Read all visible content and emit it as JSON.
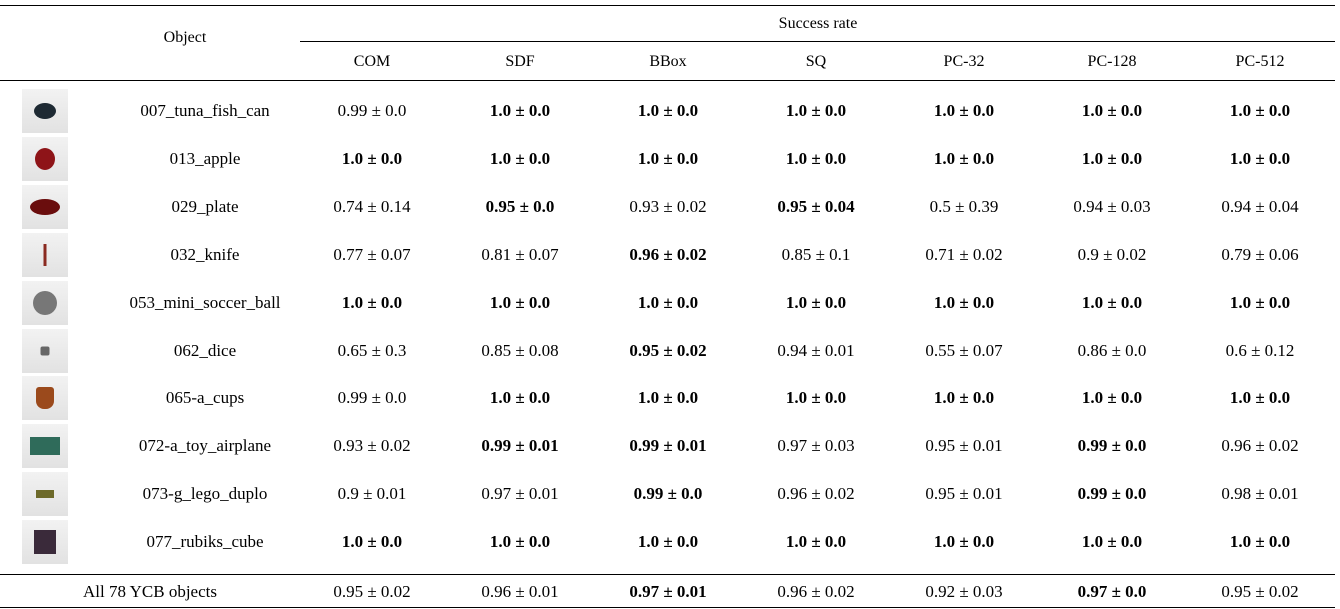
{
  "header": {
    "object": "Object",
    "group": "Success rate",
    "columns": [
      "COM",
      "SDF",
      "BBox",
      "SQ",
      "PC-32",
      "PC-128",
      "PC-512"
    ]
  },
  "rows": [
    {
      "object": "007_tuna_fish_can",
      "cells": [
        {
          "text": "0.99 ± 0.0",
          "bold": false
        },
        {
          "text": "1.0 ± 0.0",
          "bold": true
        },
        {
          "text": "1.0 ± 0.0",
          "bold": true
        },
        {
          "text": "1.0 ± 0.0",
          "bold": true
        },
        {
          "text": "1.0 ± 0.0",
          "bold": true
        },
        {
          "text": "1.0 ± 0.0",
          "bold": true
        },
        {
          "text": "1.0 ± 0.0",
          "bold": true
        }
      ]
    },
    {
      "object": "013_apple",
      "cells": [
        {
          "text": "1.0 ± 0.0",
          "bold": true
        },
        {
          "text": "1.0 ± 0.0",
          "bold": true
        },
        {
          "text": "1.0 ± 0.0",
          "bold": true
        },
        {
          "text": "1.0 ± 0.0",
          "bold": true
        },
        {
          "text": "1.0 ± 0.0",
          "bold": true
        },
        {
          "text": "1.0 ± 0.0",
          "bold": true
        },
        {
          "text": "1.0 ± 0.0",
          "bold": true
        }
      ]
    },
    {
      "object": "029_plate",
      "cells": [
        {
          "text": "0.74 ± 0.14",
          "bold": false
        },
        {
          "text": "0.95 ± 0.0",
          "bold": true
        },
        {
          "text": "0.93 ± 0.02",
          "bold": false
        },
        {
          "text": "0.95 ± 0.04",
          "bold": true
        },
        {
          "text": "0.5 ± 0.39",
          "bold": false
        },
        {
          "text": "0.94 ± 0.03",
          "bold": false
        },
        {
          "text": "0.94 ± 0.04",
          "bold": false
        }
      ]
    },
    {
      "object": "032_knife",
      "cells": [
        {
          "text": "0.77 ± 0.07",
          "bold": false
        },
        {
          "text": "0.81 ± 0.07",
          "bold": false
        },
        {
          "text": "0.96 ± 0.02",
          "bold": true
        },
        {
          "text": "0.85 ± 0.1",
          "bold": false
        },
        {
          "text": "0.71 ± 0.02",
          "bold": false
        },
        {
          "text": "0.9 ± 0.02",
          "bold": false
        },
        {
          "text": "0.79 ± 0.06",
          "bold": false
        }
      ]
    },
    {
      "object": "053_mini_soccer_ball",
      "cells": [
        {
          "text": "1.0 ± 0.0",
          "bold": true
        },
        {
          "text": "1.0 ± 0.0",
          "bold": true
        },
        {
          "text": "1.0 ± 0.0",
          "bold": true
        },
        {
          "text": "1.0 ± 0.0",
          "bold": true
        },
        {
          "text": "1.0 ± 0.0",
          "bold": true
        },
        {
          "text": "1.0 ± 0.0",
          "bold": true
        },
        {
          "text": "1.0 ± 0.0",
          "bold": true
        }
      ]
    },
    {
      "object": "062_dice",
      "cells": [
        {
          "text": "0.65 ± 0.3",
          "bold": false
        },
        {
          "text": "0.85 ± 0.08",
          "bold": false
        },
        {
          "text": "0.95 ± 0.02",
          "bold": true
        },
        {
          "text": "0.94 ± 0.01",
          "bold": false
        },
        {
          "text": "0.55 ± 0.07",
          "bold": false
        },
        {
          "text": "0.86 ± 0.0",
          "bold": false
        },
        {
          "text": "0.6 ± 0.12",
          "bold": false
        }
      ]
    },
    {
      "object": "065-a_cups",
      "cells": [
        {
          "text": "0.99 ± 0.0",
          "bold": false
        },
        {
          "text": "1.0 ± 0.0",
          "bold": true
        },
        {
          "text": "1.0 ± 0.0",
          "bold": true
        },
        {
          "text": "1.0 ± 0.0",
          "bold": true
        },
        {
          "text": "1.0 ± 0.0",
          "bold": true
        },
        {
          "text": "1.0 ± 0.0",
          "bold": true
        },
        {
          "text": "1.0 ± 0.0",
          "bold": true
        }
      ]
    },
    {
      "object": "072-a_toy_airplane",
      "cells": [
        {
          "text": "0.93 ± 0.02",
          "bold": false
        },
        {
          "text": "0.99 ± 0.01",
          "bold": true
        },
        {
          "text": "0.99 ± 0.01",
          "bold": true
        },
        {
          "text": "0.97 ± 0.03",
          "bold": false
        },
        {
          "text": "0.95 ± 0.01",
          "bold": false
        },
        {
          "text": "0.99 ± 0.0",
          "bold": true
        },
        {
          "text": "0.96 ± 0.02",
          "bold": false
        }
      ]
    },
    {
      "object": "073-g_lego_duplo",
      "cells": [
        {
          "text": "0.9 ± 0.01",
          "bold": false
        },
        {
          "text": "0.97 ± 0.01",
          "bold": false
        },
        {
          "text": "0.99 ± 0.0",
          "bold": true
        },
        {
          "text": "0.96 ± 0.02",
          "bold": false
        },
        {
          "text": "0.95 ± 0.01",
          "bold": false
        },
        {
          "text": "0.99 ± 0.0",
          "bold": true
        },
        {
          "text": "0.98 ± 0.01",
          "bold": false
        }
      ]
    },
    {
      "object": "077_rubiks_cube",
      "cells": [
        {
          "text": "1.0 ± 0.0",
          "bold": true
        },
        {
          "text": "1.0 ± 0.0",
          "bold": true
        },
        {
          "text": "1.0 ± 0.0",
          "bold": true
        },
        {
          "text": "1.0 ± 0.0",
          "bold": true
        },
        {
          "text": "1.0 ± 0.0",
          "bold": true
        },
        {
          "text": "1.0 ± 0.0",
          "bold": true
        },
        {
          "text": "1.0 ± 0.0",
          "bold": true
        }
      ]
    }
  ],
  "footer": {
    "label": "All 78 YCB objects",
    "cells": [
      {
        "text": "0.95 ± 0.02",
        "bold": false
      },
      {
        "text": "0.96 ± 0.01",
        "bold": false
      },
      {
        "text": "0.97 ± 0.01",
        "bold": true
      },
      {
        "text": "0.96 ± 0.02",
        "bold": false
      },
      {
        "text": "0.92 ± 0.03",
        "bold": false
      },
      {
        "text": "0.97 ± 0.0",
        "bold": true
      },
      {
        "text": "0.95 ± 0.02",
        "bold": false
      }
    ]
  }
}
